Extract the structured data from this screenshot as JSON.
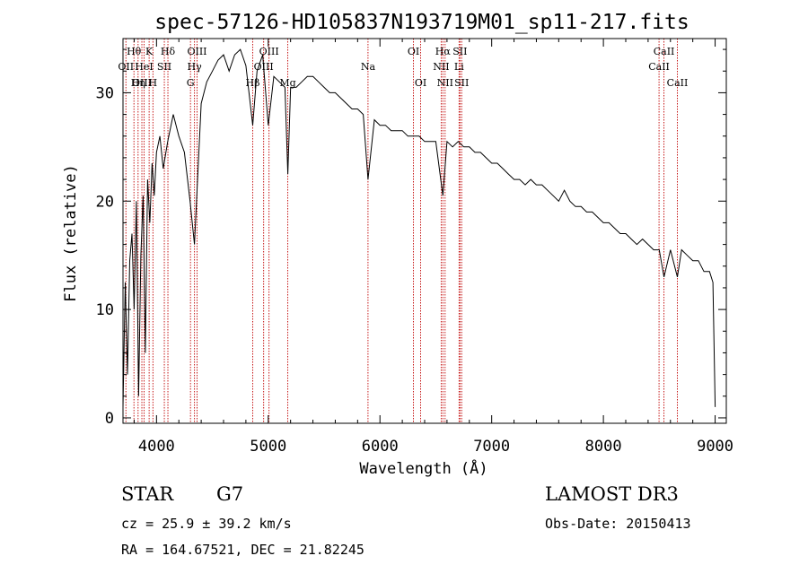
{
  "chart_data": {
    "type": "line",
    "title": "spec-57126-HD105837N193719M01_sp11-217.fits",
    "xlabel": "Wavelength (Å)",
    "ylabel": "Flux (relative)",
    "xlim": [
      3700,
      9100
    ],
    "ylim": [
      -0.5,
      35
    ],
    "xticks": [
      4000,
      5000,
      6000,
      7000,
      8000,
      9000
    ],
    "yticks": [
      0,
      10,
      20,
      30
    ],
    "series": [
      {
        "name": "spectrum",
        "x": [
          3700,
          3720,
          3740,
          3760,
          3780,
          3800,
          3820,
          3840,
          3860,
          3880,
          3900,
          3920,
          3940,
          3960,
          3980,
          4000,
          4030,
          4060,
          4100,
          4150,
          4200,
          4250,
          4300,
          4340,
          4400,
          4450,
          4500,
          4550,
          4600,
          4650,
          4700,
          4750,
          4800,
          4861,
          4900,
          4950,
          5000,
          5050,
          5100,
          5150,
          5175,
          5200,
          5250,
          5300,
          5350,
          5400,
          5450,
          5500,
          5550,
          5600,
          5650,
          5700,
          5750,
          5800,
          5850,
          5893,
          5950,
          6000,
          6050,
          6100,
          6150,
          6200,
          6250,
          6300,
          6350,
          6400,
          6450,
          6500,
          6563,
          6600,
          6650,
          6700,
          6750,
          6800,
          6850,
          6900,
          6950,
          7000,
          7050,
          7100,
          7150,
          7200,
          7250,
          7300,
          7350,
          7400,
          7450,
          7500,
          7550,
          7600,
          7650,
          7700,
          7750,
          7800,
          7850,
          7900,
          7950,
          8000,
          8050,
          8100,
          8150,
          8200,
          8250,
          8300,
          8350,
          8400,
          8450,
          8500,
          8542,
          8600,
          8662,
          8700,
          8750,
          8800,
          8850,
          8900,
          8950,
          8980,
          9000
        ],
        "values": [
          1.0,
          12.5,
          4.0,
          14.5,
          17.0,
          10.0,
          20.0,
          2.0,
          15.0,
          20.5,
          6.0,
          22.0,
          18.0,
          23.5,
          20.5,
          24.5,
          26.0,
          23.0,
          25.5,
          28.0,
          26.0,
          24.5,
          20.0,
          16.0,
          29.0,
          31.0,
          32.0,
          33.0,
          33.5,
          32.0,
          33.5,
          34.0,
          32.5,
          27.0,
          32.0,
          33.5,
          27.0,
          31.5,
          31.0,
          30.5,
          22.5,
          30.5,
          30.5,
          31.0,
          31.5,
          31.5,
          31.0,
          30.5,
          30.0,
          30.0,
          29.5,
          29.0,
          28.5,
          28.5,
          28.0,
          22.0,
          27.5,
          27.0,
          27.0,
          26.5,
          26.5,
          26.5,
          26.0,
          26.0,
          26.0,
          25.5,
          25.5,
          25.5,
          20.5,
          25.5,
          25.0,
          25.5,
          25.0,
          25.0,
          24.5,
          24.5,
          24.0,
          23.5,
          23.5,
          23.0,
          22.5,
          22.0,
          22.0,
          21.5,
          22.0,
          21.5,
          21.5,
          21.0,
          20.5,
          20.0,
          21.0,
          20.0,
          19.5,
          19.5,
          19.0,
          19.0,
          18.5,
          18.0,
          18.0,
          17.5,
          17.0,
          17.0,
          16.5,
          16.0,
          16.5,
          16.0,
          15.5,
          15.5,
          13.0,
          15.5,
          13.0,
          15.5,
          15.0,
          14.5,
          14.5,
          13.5,
          13.5,
          12.5,
          1.0
        ]
      }
    ],
    "lines": [
      {
        "wl": 3726,
        "label": "OII",
        "row": 2
      },
      {
        "wl": 3798,
        "label": "Hθ",
        "row": 1
      },
      {
        "wl": 3835,
        "label": "Hη",
        "row": 3
      },
      {
        "wl": 3869,
        "label": "OIII",
        "row": 3
      },
      {
        "wl": 3889,
        "label": "HeI",
        "row": 2
      },
      {
        "wl": 3934,
        "label": "K",
        "row": 1
      },
      {
        "wl": 3968,
        "label": "H",
        "row": 3
      },
      {
        "wl": 4070,
        "label": "SII",
        "row": 2
      },
      {
        "wl": 4102,
        "label": "Hδ",
        "row": 1
      },
      {
        "wl": 4304,
        "label": "G",
        "row": 3
      },
      {
        "wl": 4340,
        "label": "Hγ",
        "row": 2
      },
      {
        "wl": 4363,
        "label": "OIII",
        "row": 1
      },
      {
        "wl": 4861,
        "label": "Hβ",
        "row": 3
      },
      {
        "wl": 4959,
        "label": "OIII",
        "row": 2
      },
      {
        "wl": 5007,
        "label": "OIII",
        "row": 1
      },
      {
        "wl": 5175,
        "label": "Mg",
        "row": 3
      },
      {
        "wl": 5893,
        "label": "Na",
        "row": 2
      },
      {
        "wl": 6300,
        "label": "OI",
        "row": 1
      },
      {
        "wl": 6364,
        "label": "OI",
        "row": 3
      },
      {
        "wl": 6548,
        "label": "NII",
        "row": 2
      },
      {
        "wl": 6563,
        "label": "Hα",
        "row": 1
      },
      {
        "wl": 6583,
        "label": "NII",
        "row": 3
      },
      {
        "wl": 6708,
        "label": "Li",
        "row": 2
      },
      {
        "wl": 6716,
        "label": "SII",
        "row": 1
      },
      {
        "wl": 6731,
        "label": "SII",
        "row": 3
      },
      {
        "wl": 8498,
        "label": "CaII",
        "row": 2
      },
      {
        "wl": 8542,
        "label": "CaII",
        "row": 1
      },
      {
        "wl": 8662,
        "label": "CaII",
        "row": 3
      }
    ]
  },
  "info": {
    "object_class": "STAR",
    "subclass": "G7",
    "survey": "LAMOST DR3",
    "redshift": "cz = 25.9 ± 39.2 km/s",
    "obs_date": "Obs-Date: 20150413",
    "coords": "RA = 164.67521, DEC =  21.82245"
  }
}
